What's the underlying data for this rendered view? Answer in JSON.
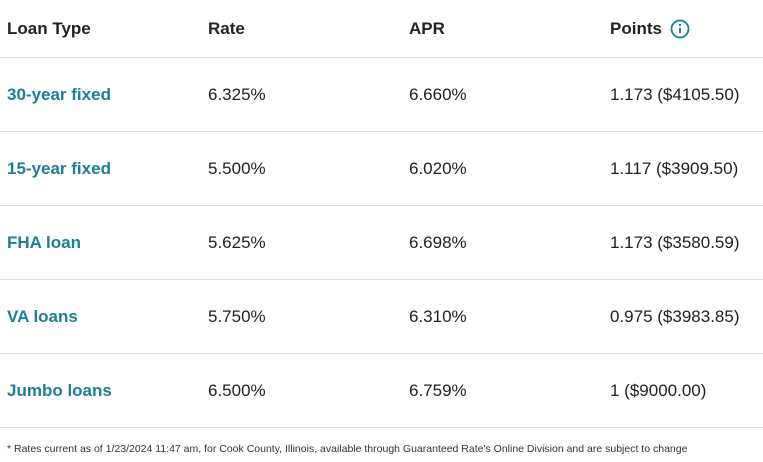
{
  "colors": {
    "link": "#1d7e97",
    "divider": "#cfe3e6",
    "text": "#1f1f1f"
  },
  "header": {
    "loan_type": "Loan Type",
    "rate": "Rate",
    "apr": "APR",
    "points": "Points",
    "info_icon": "info-circle-icon"
  },
  "rows": [
    {
      "loan_type": "30-year fixed",
      "rate": "6.325%",
      "apr": "6.660%",
      "points": "1.173 ($4105.50)"
    },
    {
      "loan_type": "15-year fixed",
      "rate": "5.500%",
      "apr": "6.020%",
      "points": "1.117 ($3909.50)"
    },
    {
      "loan_type": "FHA loan",
      "rate": "5.625%",
      "apr": "6.698%",
      "points": "1.173 ($3580.59)"
    },
    {
      "loan_type": "VA loans",
      "rate": "5.750%",
      "apr": "6.310%",
      "points": "0.975 ($3983.85)"
    },
    {
      "loan_type": "Jumbo loans",
      "rate": "6.500%",
      "apr": "6.759%",
      "points": "1 ($9000.00)"
    }
  ],
  "footnote": "* Rates current as of 1/23/2024 11:47 am, for Cook County, Illinois, available through Guaranteed Rate's Online Division and are subject to change"
}
